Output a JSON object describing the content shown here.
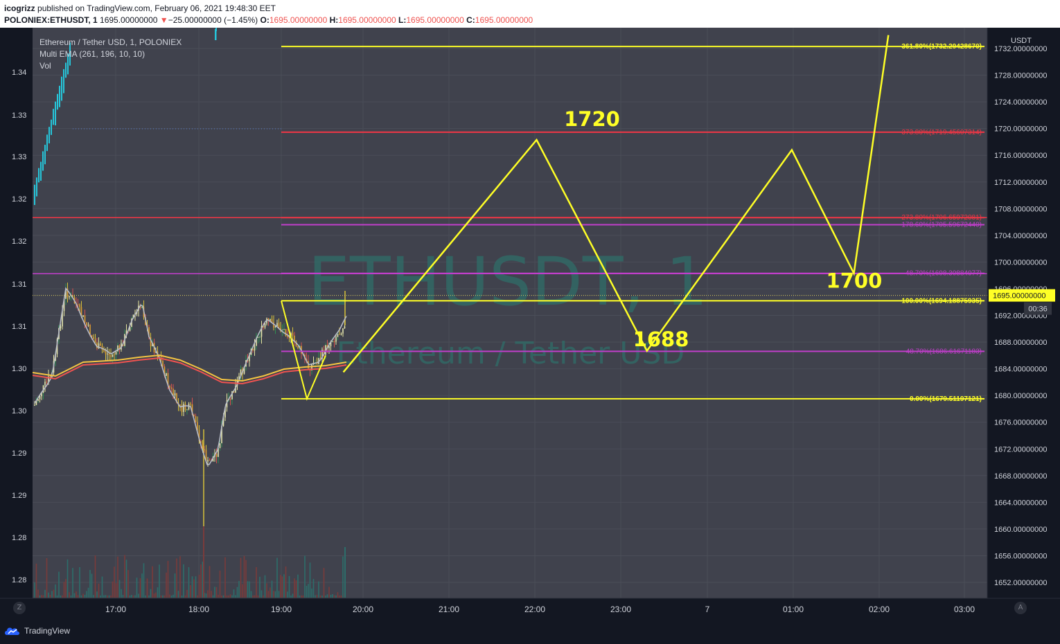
{
  "header": {
    "author": "icogrizz",
    "published_text": "published on TradingView.com, February 06, 2021 19:48:30 EET",
    "symbol": "POLONIEX:ETHUSDT, 1",
    "price": "1695.00000000",
    "change_arrow": "▼",
    "change": "−25.00000000 (−1.45%)",
    "o_label": "O:",
    "o_value": "1695.00000000",
    "h_label": "H:",
    "h_value": "1695.00000000",
    "l_label": "L:",
    "l_value": "1695.00000000",
    "c_label": "C:",
    "c_value": "1695.00000000"
  },
  "legend": {
    "title": "Ethereum / Tether USD, 1, POLONIEX",
    "indicator": "Multi EMA (261, 196, 10, 10)",
    "volume": "Vol"
  },
  "watermark": {
    "line1": "ETHUSDT, 1",
    "line2": "Ethereum / Tether USD"
  },
  "footer": {
    "brand": "TradingView",
    "left_button": "Z",
    "right_button": "A"
  },
  "colors": {
    "background": "#131722",
    "pane": "#40424d",
    "bull": "#26c6da",
    "bear_candle": "#e0e03a",
    "yellow": "#ffff26",
    "red_level": "#f23645",
    "magenta_level": "#c13ecb",
    "ema_yellow": "#f5c542",
    "ema_red": "#ef5350"
  },
  "chart_data": {
    "type": "line",
    "title": "",
    "right_axis": {
      "unit": "USDT",
      "ticks": [
        1652,
        1656,
        1660,
        1664,
        1668,
        1672,
        1676,
        1680,
        1684,
        1688,
        1692,
        1696,
        1700,
        1704,
        1708,
        1712,
        1716,
        1720,
        1724,
        1728,
        1732
      ],
      "tick_labels": [
        "1652.00000000",
        "1656.00000000",
        "1660.00000000",
        "1664.00000000",
        "1668.00000000",
        "1672.00000000",
        "1676.00000000",
        "1680.00000000",
        "1684.00000000",
        "1688.00000000",
        "1692.00000000",
        "1696.00000000",
        "1700.00000000",
        "1704.00000000",
        "1708.00000000",
        "1712.00000000",
        "1716.00000000",
        "1720.00000000",
        "1724.00000000",
        "1728.00000000",
        "1732.00000000"
      ],
      "ylim": [
        1649,
        1734
      ],
      "current_price": "1695.00000000",
      "countdown": "00:36"
    },
    "left_axis": {
      "tick_labels": [
        "1.34",
        "1.33",
        "1.33",
        "1.32",
        "1.32",
        "1.31",
        "1.31",
        "1.30",
        "1.30",
        "1.29",
        "1.29",
        "1.28",
        "1.28"
      ]
    },
    "x_axis": {
      "tick_labels": [
        "17:00",
        "18:00",
        "19:00",
        "20:00",
        "21:00",
        "22:00",
        "23:00",
        "7",
        "01:00",
        "02:00",
        "03:00"
      ]
    },
    "fib_levels": [
      {
        "label": "361.80%(1732.29428670)",
        "price": 1732.2943,
        "color": "yellow"
      },
      {
        "label": "373.80%(1719.45607314)",
        "price": 1719.4561,
        "color": "red"
      },
      {
        "label": "273.80%(1706.65972081)",
        "price": 1706.6597,
        "color": "red"
      },
      {
        "label": "178.60%(1705.59672440)",
        "price": 1705.5967,
        "color": "magenta"
      },
      {
        "label": "48.70%(1698.30884077)",
        "price": 1698.3088,
        "color": "magenta"
      },
      {
        "label": "100.00%(1694.18875935)",
        "price": 1694.1888,
        "color": "yellow"
      },
      {
        "label": "48.70%(1686.61671183)",
        "price": 1686.6167,
        "color": "magenta"
      },
      {
        "label": "0.00%(1679.51197121)",
        "price": 1679.512,
        "color": "yellow"
      }
    ],
    "projection": {
      "name": "",
      "time": [
        "19:45",
        "22:05",
        "23:25",
        "01:10",
        "01:55",
        "02:20"
      ],
      "price": [
        1683.5,
        1718.3,
        1686.7,
        1716.8,
        1698.3,
        1734
      ]
    },
    "annotations": [
      {
        "text": "1720",
        "time": "22:45",
        "price": 1721.4
      },
      {
        "text": "1688",
        "time": "23:35",
        "price": 1688.4
      },
      {
        "text": "1700",
        "time": "01:55",
        "price": 1697.2
      }
    ]
  }
}
